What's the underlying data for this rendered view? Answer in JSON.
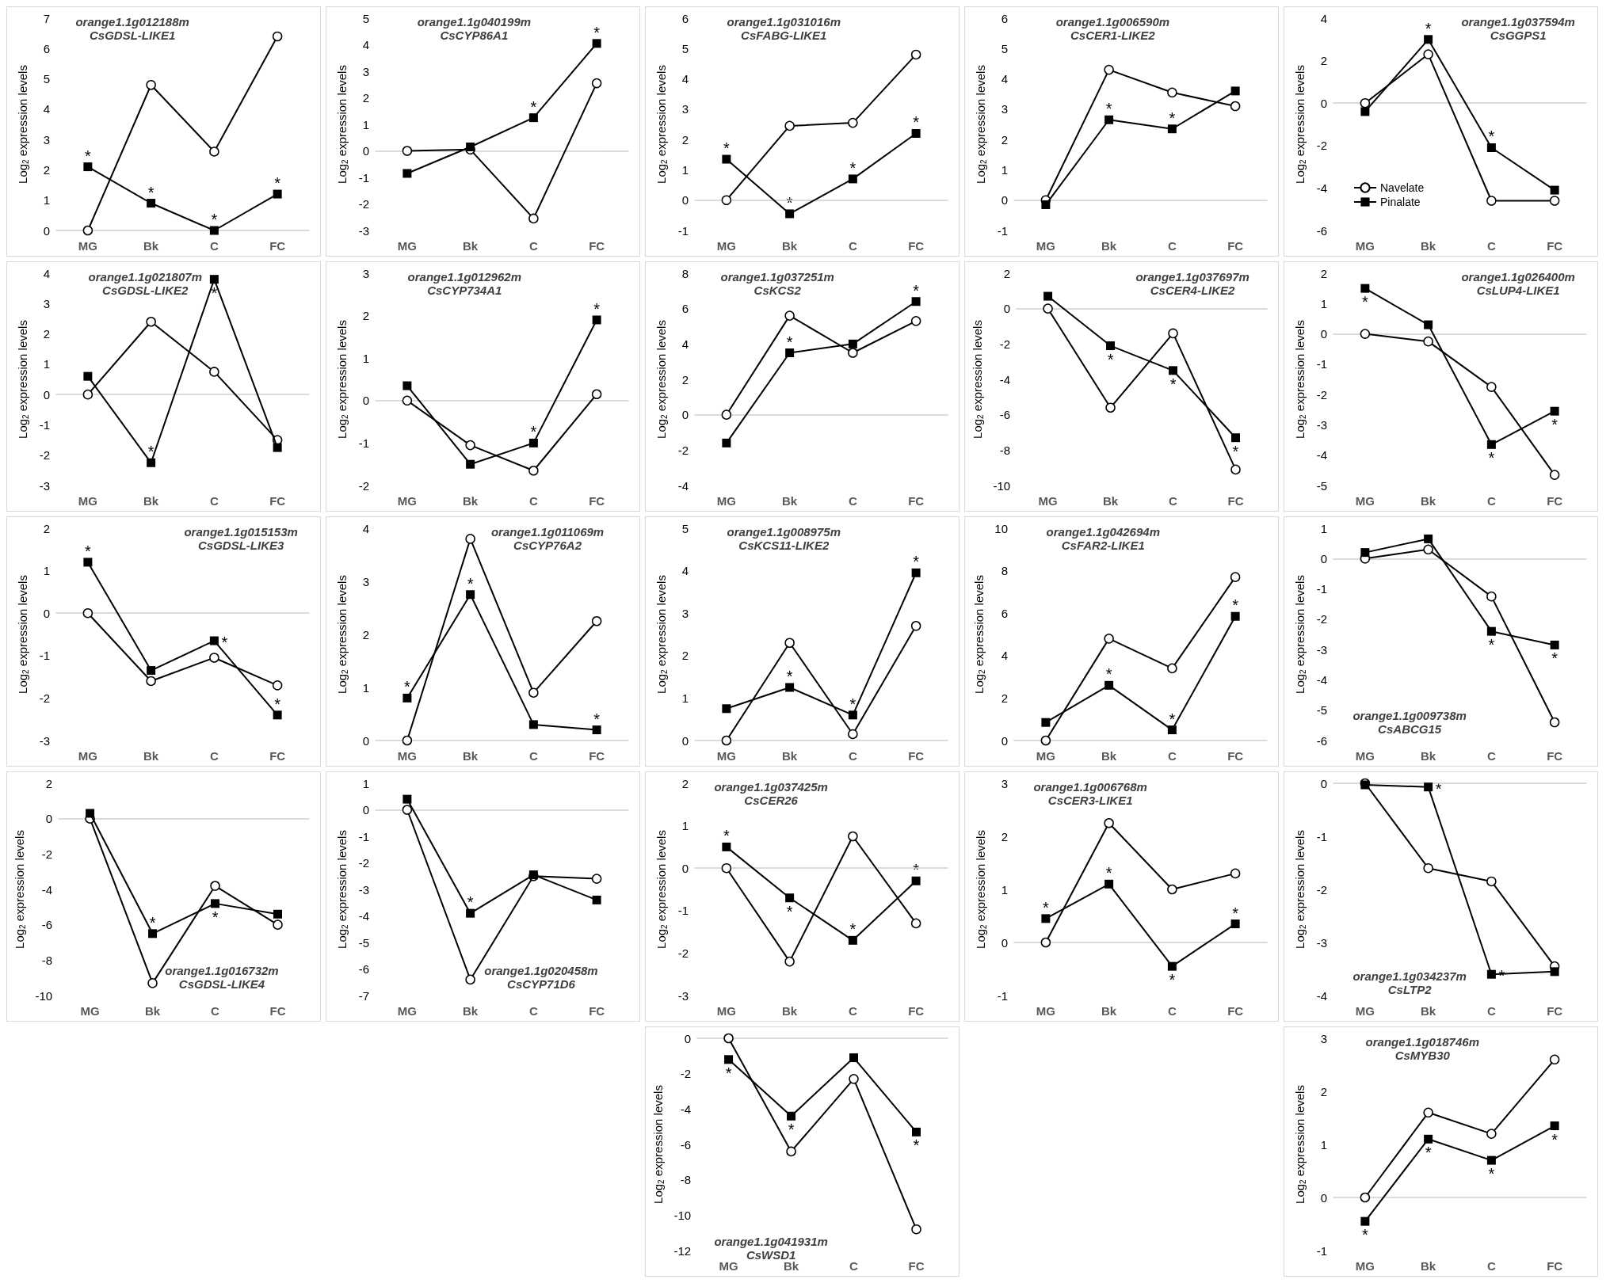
{
  "chart_data": [
    {
      "type": "line",
      "title": "orange1.1g012188m",
      "subtitle": "CsGDSL-LIKE1",
      "ylabel": "Log$_{2}$ expression levels",
      "categories": [
        "MG",
        "Bk",
        "C",
        "FC"
      ],
      "ylim": [
        0,
        7
      ],
      "yticks": [
        0,
        1,
        2,
        3,
        4,
        5,
        6,
        7
      ],
      "series": [
        {
          "color": "#000000",
          "marker": "circle",
          "values": [
            0,
            4.8,
            2.6,
            6.4
          ]
        },
        {
          "color": "#000000",
          "marker": "square",
          "values": [
            2.1,
            0.9,
            0,
            1.2
          ]
        }
      ],
      "annotations": [
        {
          "text": "*",
          "x": "MG",
          "y": 2.1
        },
        {
          "text": "*",
          "x": "Bk",
          "y": 0.9
        },
        {
          "text": "*",
          "x": "C",
          "y": 0
        },
        {
          "text": "*",
          "x": "FC",
          "y": 1.2
        }
      ]
    },
    {
      "type": "line",
      "title": "orange1.1g040199m",
      "subtitle": "CsCYP86A1",
      "ylabel": "Log$_{2}$ expression levels",
      "categories": [
        "MG",
        "Bk",
        "C",
        "FC"
      ],
      "ylim": [
        -3,
        5
      ],
      "yticks": [
        -3,
        -2,
        -1,
        0,
        1,
        2,
        3,
        4,
        5
      ],
      "series": [
        {
          "color": "#000000",
          "marker": "circle",
          "values": [
            0,
            0.05,
            -2.55,
            2.55
          ]
        },
        {
          "color": "#000000",
          "marker": "square",
          "values": [
            -0.85,
            0.15,
            1.25,
            4.05
          ]
        }
      ],
      "annotations": [
        {
          "text": "*",
          "x": "C",
          "y": 1.25
        },
        {
          "text": "*",
          "x": "FC",
          "y": 4.05
        }
      ]
    },
    {
      "type": "line",
      "title": "orange1.1g031016m",
      "subtitle": "CsFABG-LIKE1",
      "ylabel": "Log$_{2}$ expression levels",
      "categories": [
        "MG",
        "Bk",
        "C",
        "FC"
      ],
      "ylim": [
        -1,
        6
      ],
      "yticks": [
        -1,
        0,
        1,
        2,
        3,
        4,
        5,
        6
      ],
      "series": [
        {
          "color": "#000000",
          "marker": "circle",
          "values": [
            0,
            2.45,
            2.55,
            4.8
          ]
        },
        {
          "color": "#000000",
          "marker": "square",
          "values": [
            1.35,
            -0.45,
            0.7,
            2.2
          ]
        }
      ],
      "annotations": [
        {
          "text": "*",
          "x": "MG",
          "y": 1.35
        },
        {
          "text": "*",
          "x": "Bk",
          "y": -0.45
        },
        {
          "text": "*",
          "x": "C",
          "y": 0.7
        },
        {
          "text": "*",
          "x": "FC",
          "y": 2.2
        }
      ]
    },
    {
      "type": "line",
      "title": "orange1.1g006590m",
      "subtitle": "CsCER1-LIKE2",
      "ylabel": "Log$_{2}$ expression levels",
      "categories": [
        "MG",
        "Bk",
        "C",
        "FC"
      ],
      "ylim": [
        -1,
        6
      ],
      "yticks": [
        -1,
        0,
        1,
        2,
        3,
        4,
        5,
        6
      ],
      "series": [
        {
          "color": "#000000",
          "marker": "circle",
          "values": [
            0,
            4.3,
            3.55,
            3.1
          ]
        },
        {
          "color": "#000000",
          "marker": "square",
          "values": [
            -0.15,
            2.65,
            2.35,
            3.6
          ]
        }
      ],
      "annotations": [
        {
          "text": "*",
          "x": "Bk",
          "y": 2.65
        },
        {
          "text": "*",
          "x": "C",
          "y": 2.35
        }
      ]
    },
    {
      "type": "line",
      "title": "orange1.1g037594m",
      "subtitle": "CsGGPS1",
      "ylabel": "Log$_{2}$ expression levels",
      "categories": [
        "MG",
        "Bk",
        "C",
        "FC"
      ],
      "ylim": [
        -6,
        4
      ],
      "yticks": [
        -6,
        -4,
        -2,
        0,
        2,
        4
      ],
      "legend": "bottom left",
      "series": [
        {
          "name": "Navelate",
          "color": "#000000",
          "marker": "circle",
          "values": [
            0,
            2.3,
            -4.6,
            -4.6
          ]
        },
        {
          "name": "Pinalate",
          "color": "#000000",
          "marker": "square",
          "values": [
            -0.4,
            3.0,
            -2.1,
            -4.1
          ]
        }
      ],
      "annotations": [
        {
          "text": "*",
          "x": "Bk",
          "y": 3.0
        },
        {
          "text": "*",
          "x": "C",
          "y": -2.1
        }
      ]
    },
    {
      "type": "line",
      "title": "orange1.1g021807m",
      "subtitle": "CsGDSL-LIKE2",
      "ylabel": "Log$_{2}$ expression levels",
      "categories": [
        "MG",
        "Bk",
        "C",
        "FC"
      ],
      "ylim": [
        -3,
        4
      ],
      "yticks": [
        -3,
        -2,
        -1,
        0,
        1,
        2,
        3,
        4
      ],
      "series": [
        {
          "color": "#000000",
          "marker": "circle",
          "values": [
            0,
            2.4,
            0.75,
            -1.5
          ]
        },
        {
          "color": "#000000",
          "marker": "square",
          "values": [
            0.6,
            -2.25,
            3.8,
            -1.75
          ]
        }
      ],
      "annotations": [
        {
          "text": "*",
          "x": "Bk",
          "y": -2.25
        },
        {
          "text": "*",
          "x": "C",
          "y": 3.8
        }
      ]
    },
    {
      "type": "line",
      "title": "orange1.1g012962m",
      "subtitle": "CsCYP734A1",
      "ylabel": "Log$_{2}$ expression levels",
      "categories": [
        "MG",
        "Bk",
        "C",
        "FC"
      ],
      "ylim": [
        -2,
        3
      ],
      "yticks": [
        -2,
        -1,
        0,
        1,
        2,
        3
      ],
      "series": [
        {
          "color": "#000000",
          "marker": "circle",
          "values": [
            0,
            -1.05,
            -1.65,
            0.15
          ]
        },
        {
          "color": "#000000",
          "marker": "square",
          "values": [
            0.35,
            -1.5,
            -1.0,
            1.9
          ]
        }
      ],
      "annotations": [
        {
          "text": "*",
          "x": "C",
          "y": -1.0
        },
        {
          "text": "*",
          "x": "FC",
          "y": 1.9
        }
      ]
    },
    {
      "type": "line",
      "title": "orange1.1g037251m",
      "subtitle": "CsKCS2",
      "ylabel": "Log$_{2}$ expression levels",
      "categories": [
        "MG",
        "Bk",
        "C",
        "FC"
      ],
      "ylim": [
        -4,
        8
      ],
      "yticks": [
        -4,
        -2,
        0,
        2,
        4,
        6,
        8
      ],
      "series": [
        {
          "color": "#000000",
          "marker": "circle",
          "values": [
            0,
            5.6,
            3.5,
            5.3
          ]
        },
        {
          "color": "#000000",
          "marker": "square",
          "values": [
            -1.6,
            3.5,
            4.0,
            6.4
          ]
        }
      ],
      "annotations": [
        {
          "text": "*",
          "x": "Bk",
          "y": 3.5
        },
        {
          "text": "*",
          "x": "FC",
          "y": 6.4
        }
      ]
    },
    {
      "type": "line",
      "title": "orange1.1g037697m",
      "subtitle": "CsCER4-LIKE2",
      "ylabel": "Log$_{2}$ expression levels",
      "categories": [
        "MG",
        "Bk",
        "C",
        "FC"
      ],
      "ylim": [
        -10,
        2
      ],
      "yticks": [
        -10,
        -8,
        -6,
        -4,
        -2,
        0,
        2
      ],
      "series": [
        {
          "color": "#000000",
          "marker": "circle",
          "values": [
            0,
            -5.6,
            -1.4,
            -9.1
          ]
        },
        {
          "color": "#000000",
          "marker": "square",
          "values": [
            0.7,
            -2.1,
            -3.5,
            -7.3
          ]
        }
      ],
      "annotations": [
        {
          "text": "*",
          "x": "Bk",
          "y": -2.1
        },
        {
          "text": "*",
          "x": "C",
          "y": -3.5
        },
        {
          "text": "*",
          "x": "FC",
          "y": -7.3
        }
      ]
    },
    {
      "type": "line",
      "title": "orange1.1g026400m",
      "subtitle": "CsLUP4-LIKE1",
      "ylabel": "Log$_{2}$ expression levels",
      "categories": [
        "MG",
        "Bk",
        "C",
        "FC"
      ],
      "ylim": [
        -5,
        2
      ],
      "yticks": [
        -5,
        -4,
        -3,
        -2,
        -1,
        0,
        1,
        2
      ],
      "series": [
        {
          "color": "#000000",
          "marker": "circle",
          "values": [
            0,
            -0.25,
            -1.75,
            -4.65
          ]
        },
        {
          "color": "#000000",
          "marker": "square",
          "values": [
            1.5,
            0.3,
            -3.65,
            -2.55
          ]
        }
      ],
      "annotations": [
        {
          "text": "*",
          "x": "MG",
          "y": 1.5
        },
        {
          "text": "*",
          "x": "C",
          "y": -3.65
        },
        {
          "text": "*",
          "x": "FC",
          "y": -2.55
        }
      ]
    },
    {
      "type": "line",
      "title": "orange1.1g015153m",
      "subtitle": "CsGDSL-LIKE3",
      "ylabel": "Log$_{2}$ expression levels",
      "categories": [
        "MG",
        "Bk",
        "C",
        "FC"
      ],
      "ylim": [
        -3,
        2
      ],
      "yticks": [
        -3,
        -2,
        -1,
        0,
        1,
        2
      ],
      "series": [
        {
          "color": "#000000",
          "marker": "circle",
          "values": [
            0,
            -1.6,
            -1.05,
            -1.7
          ]
        },
        {
          "color": "#000000",
          "marker": "square",
          "values": [
            1.2,
            -1.35,
            -0.65,
            -2.4
          ]
        }
      ],
      "annotations": [
        {
          "text": "*",
          "x": "MG",
          "y": 1.2
        },
        {
          "text": "*",
          "x": "C",
          "y": -0.65
        },
        {
          "text": "*",
          "x": "FC",
          "y": -2.4
        }
      ]
    },
    {
      "type": "line",
      "title": "orange1.1g011069m",
      "subtitle": "CsCYP76A2",
      "ylabel": "Log$_{2}$ expression levels",
      "categories": [
        "MG",
        "Bk",
        "C",
        "FC"
      ],
      "ylim": [
        0,
        4
      ],
      "yticks": [
        0,
        1,
        2,
        3,
        4
      ],
      "series": [
        {
          "color": "#000000",
          "marker": "circle",
          "values": [
            0,
            3.8,
            0.9,
            2.25
          ]
        },
        {
          "color": "#000000",
          "marker": "square",
          "values": [
            0.8,
            2.75,
            0.3,
            0.2
          ]
        }
      ],
      "annotations": [
        {
          "text": "*",
          "x": "MG",
          "y": 0.8
        },
        {
          "text": "*",
          "x": "Bk",
          "y": 2.75
        },
        {
          "text": "*",
          "x": "FC",
          "y": 0.2
        }
      ]
    },
    {
      "type": "line",
      "title": "orange1.1g008975m",
      "subtitle": "CsKCS11-LIKE2",
      "ylabel": "Log$_{2}$ expression levels",
      "categories": [
        "MG",
        "Bk",
        "C",
        "FC"
      ],
      "ylim": [
        0,
        5
      ],
      "yticks": [
        0,
        1,
        2,
        3,
        4,
        5
      ],
      "series": [
        {
          "color": "#000000",
          "marker": "circle",
          "values": [
            0,
            2.3,
            0.15,
            2.7
          ]
        },
        {
          "color": "#000000",
          "marker": "square",
          "values": [
            0.75,
            1.25,
            0.6,
            3.95
          ]
        }
      ],
      "annotations": [
        {
          "text": "*",
          "x": "Bk",
          "y": 1.25
        },
        {
          "text": "*",
          "x": "C",
          "y": 0.6
        },
        {
          "text": "*",
          "x": "FC",
          "y": 3.95
        }
      ]
    },
    {
      "type": "line",
      "title": "orange1.1g042694m",
      "subtitle": "CsFAR2-LIKE1",
      "ylabel": "Log$_{2}$ expression levels",
      "categories": [
        "MG",
        "Bk",
        "C",
        "FC"
      ],
      "ylim": [
        0,
        10
      ],
      "yticks": [
        0,
        2,
        4,
        6,
        8,
        10
      ],
      "series": [
        {
          "color": "#000000",
          "marker": "circle",
          "values": [
            0,
            4.8,
            3.4,
            7.7
          ]
        },
        {
          "color": "#000000",
          "marker": "square",
          "values": [
            0.85,
            2.6,
            0.5,
            5.85
          ]
        }
      ],
      "annotations": [
        {
          "text": "*",
          "x": "Bk",
          "y": 2.6
        },
        {
          "text": "*",
          "x": "C",
          "y": 0.5
        },
        {
          "text": "*",
          "x": "FC",
          "y": 5.85
        }
      ]
    },
    {
      "type": "line",
      "title": "orange1.1g009738m",
      "subtitle": "CsABCG15",
      "ylabel": "Log$_{2}$ expression levels",
      "categories": [
        "MG",
        "Bk",
        "C",
        "FC"
      ],
      "ylim": [
        -6,
        1
      ],
      "yticks": [
        -6,
        -5,
        -4,
        -3,
        -2,
        -1,
        0,
        1
      ],
      "series": [
        {
          "color": "#000000",
          "marker": "circle",
          "values": [
            0,
            0.3,
            -1.25,
            -5.4
          ]
        },
        {
          "color": "#000000",
          "marker": "square",
          "values": [
            0.2,
            0.65,
            -2.4,
            -2.85
          ]
        }
      ],
      "annotations": [
        {
          "text": "*",
          "x": "C",
          "y": -2.4
        },
        {
          "text": "*",
          "x": "FC",
          "y": -2.85
        }
      ]
    },
    {
      "type": "line",
      "title": "orange1.1g016732m",
      "subtitle": "CsGDSL-LIKE4",
      "ylabel": "Log$_{2}$ expression levels",
      "categories": [
        "MG",
        "Bk",
        "C",
        "FC"
      ],
      "ylim": [
        -10,
        2
      ],
      "yticks": [
        -10,
        -8,
        -6,
        -4,
        -2,
        0,
        2
      ],
      "series": [
        {
          "color": "#000000",
          "marker": "circle",
          "values": [
            0,
            -9.3,
            -3.8,
            -6.0
          ]
        },
        {
          "color": "#000000",
          "marker": "square",
          "values": [
            0.3,
            -6.5,
            -4.8,
            -5.4
          ]
        }
      ],
      "annotations": [
        {
          "text": "*",
          "x": "Bk",
          "y": -6.5
        },
        {
          "text": "*",
          "x": "C",
          "y": -4.8
        }
      ]
    },
    {
      "type": "line",
      "title": "orange1.1g020458m",
      "subtitle": "CsCYP71D6",
      "ylabel": "Log$_{2}$ expression levels",
      "categories": [
        "MG",
        "Bk",
        "C",
        "FC"
      ],
      "ylim": [
        -7,
        1
      ],
      "yticks": [
        -7,
        -6,
        -5,
        -4,
        -3,
        -2,
        -1,
        0,
        1
      ],
      "series": [
        {
          "color": "#000000",
          "marker": "circle",
          "values": [
            0,
            -6.4,
            -2.5,
            -2.6
          ]
        },
        {
          "color": "#000000",
          "marker": "square",
          "values": [
            0.4,
            -3.9,
            -2.45,
            -3.4
          ]
        }
      ],
      "annotations": [
        {
          "text": "*",
          "x": "Bk",
          "y": -3.9
        }
      ]
    },
    {
      "type": "line",
      "title": "orange1.1g037425m",
      "subtitle": "CsCER26",
      "ylabel": "Log$_{2}$ expression levels",
      "categories": [
        "MG",
        "Bk",
        "C",
        "FC"
      ],
      "ylim": [
        -3,
        2
      ],
      "yticks": [
        -3,
        -2,
        -1,
        0,
        1,
        2
      ],
      "series": [
        {
          "color": "#000000",
          "marker": "circle",
          "values": [
            0,
            -2.2,
            0.75,
            -1.3
          ]
        },
        {
          "color": "#000000",
          "marker": "square",
          "values": [
            0.5,
            -0.7,
            -1.7,
            -0.3
          ]
        }
      ],
      "annotations": [
        {
          "text": "*",
          "x": "MG",
          "y": 0.5
        },
        {
          "text": "*",
          "x": "Bk",
          "y": -0.7
        },
        {
          "text": "*",
          "x": "C",
          "y": -1.7
        },
        {
          "text": "*",
          "x": "FC",
          "y": -0.3
        }
      ]
    },
    {
      "type": "line",
      "title": "orange1.1g006768m",
      "subtitle": "CsCER3-LIKE1",
      "ylabel": "Log$_{2}$ expression levels",
      "categories": [
        "MG",
        "Bk",
        "C",
        "FC"
      ],
      "ylim": [
        -1,
        3
      ],
      "yticks": [
        -1,
        0,
        1,
        2,
        3
      ],
      "series": [
        {
          "color": "#000000",
          "marker": "circle",
          "values": [
            0,
            2.25,
            1.0,
            1.3
          ]
        },
        {
          "color": "#000000",
          "marker": "square",
          "values": [
            0.45,
            1.1,
            -0.45,
            0.35
          ]
        }
      ],
      "annotations": [
        {
          "text": "*",
          "x": "MG",
          "y": 0.45
        },
        {
          "text": "*",
          "x": "Bk",
          "y": 1.1
        },
        {
          "text": "*",
          "x": "C",
          "y": -0.45
        },
        {
          "text": "*",
          "x": "FC",
          "y": 0.35
        }
      ]
    },
    {
      "type": "line",
      "title": "orange1.1g034237m",
      "subtitle": "CsLTP2",
      "ylabel": "Log$_{2}$ expression levels",
      "categories": [
        "MG",
        "Bk",
        "C",
        "FC"
      ],
      "ylim": [
        -4,
        0
      ],
      "yticks": [
        -4,
        -3,
        -2,
        -1,
        0
      ],
      "series": [
        {
          "color": "#000000",
          "marker": "circle",
          "values": [
            0,
            -1.6,
            -1.85,
            -3.45
          ]
        },
        {
          "color": "#000000",
          "marker": "square",
          "values": [
            -0.03,
            -0.07,
            -3.6,
            -3.55
          ]
        }
      ],
      "annotations": [
        {
          "text": "*",
          "x": "Bk",
          "y": -0.07
        },
        {
          "text": "*",
          "x": "C",
          "y": -3.6
        }
      ]
    },
    {
      "type": "line",
      "title": "orange1.1g041931m",
      "subtitle": "CsWSD1",
      "ylabel": "Log$_{2}$ expression levels",
      "categories": [
        "MG",
        "Bk",
        "C",
        "FC"
      ],
      "ylim": [
        -12,
        0
      ],
      "yticks": [
        -12,
        -10,
        -8,
        -6,
        -4,
        -2,
        0
      ],
      "series": [
        {
          "color": "#000000",
          "marker": "circle",
          "values": [
            0,
            -6.4,
            -2.3,
            -10.8
          ]
        },
        {
          "color": "#000000",
          "marker": "square",
          "values": [
            -1.2,
            -4.4,
            -1.1,
            -5.3
          ]
        }
      ],
      "annotations": [
        {
          "text": "*",
          "x": "MG",
          "y": -1.2
        },
        {
          "text": "*",
          "x": "Bk",
          "y": -4.4
        },
        {
          "text": "*",
          "x": "FC",
          "y": -5.3
        }
      ]
    },
    {
      "type": "line",
      "title": "orange1.1g018746m",
      "subtitle": "CsMYB30",
      "ylabel": "Log$_{2}$ expression levels",
      "categories": [
        "MG",
        "Bk",
        "C",
        "FC"
      ],
      "ylim": [
        -1,
        3
      ],
      "yticks": [
        -1,
        0,
        1,
        2,
        3
      ],
      "series": [
        {
          "color": "#000000",
          "marker": "circle",
          "values": [
            0,
            1.6,
            1.2,
            2.6
          ]
        },
        {
          "color": "#000000",
          "marker": "square",
          "values": [
            -0.45,
            1.1,
            0.7,
            1.35
          ]
        }
      ],
      "annotations": [
        {
          "text": "*",
          "x": "MG",
          "y": -0.45
        },
        {
          "text": "*",
          "x": "Bk",
          "y": 1.1
        },
        {
          "text": "*",
          "x": "C",
          "y": 0.7
        },
        {
          "text": "*",
          "x": "FC",
          "y": 1.35
        }
      ]
    }
  ]
}
